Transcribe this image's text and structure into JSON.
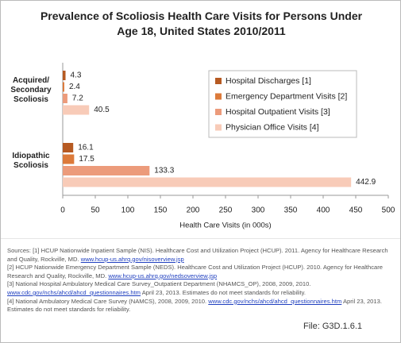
{
  "chart_data": {
    "type": "hbar",
    "title": "Prevalence of Scoliosis Health Care Visits for Persons Under Age 18, United States 2010/2011",
    "x_label": "Health Care Visits (in 000s)",
    "categories": [
      "Acquired/ Secondary Scoliosis",
      "Idiopathic Scoliosis"
    ],
    "series": [
      {
        "name": "Hospital Discharges [1]",
        "color": "#b65a22",
        "values": [
          4.3,
          16.1
        ]
      },
      {
        "name": "Emergency Department Visits [2]",
        "color": "#dc7a3a",
        "values": [
          2.4,
          17.5
        ]
      },
      {
        "name": "Hospital Outpatient Visits [3]",
        "color": "#ec9b7b",
        "values": [
          7.2,
          133.3
        ]
      },
      {
        "name": "Physician Office Visits [4]",
        "color": "#f8cbb8",
        "values": [
          40.5,
          442.9
        ]
      }
    ],
    "xlim": [
      0,
      500
    ],
    "xticks": [
      0,
      50,
      100,
      150,
      200,
      250,
      300,
      350,
      400,
      450,
      500
    ],
    "grid": false,
    "legend": "right"
  },
  "sources": [
    {
      "text": "Sources: [1] HCUP Nationwide Inpatient Sample (NIS). Healthcare Cost and Utilization Project (HCUP). 2011. Agency for Healthcare Research and Quality, Rockville, MD.",
      "link": "www.hcup-us.ahrq.gov/nisoverview.jsp"
    },
    {
      "text": "[2] HCUP Nationwide Emergency Department Sample (NEDS). Healthcare Cost and Utilization Project (HCUP). 2010. Agency for Healthcare Research and Quality, Rockville, MD.",
      "link": "www.hcup-us.ahrq.gov/nedsoverview.jsp"
    },
    {
      "text": "[3] National Hospital Ambulatory Medical Care Survey_Outpatient Department (NHAMCS_OP), 2008, 2009, 2010.",
      "link": "www.cdc.gov/nchs/ahcd/ahcd_questionnaires.htm",
      "after": "April 23, 2013. Estimates do not meet standards for reliability."
    },
    {
      "text": "[4] National Ambulatory Medical Care Survey (NAMCS), 2008, 2009, 2010.",
      "link": "www.cdc.gov/nchs/ahcd/ahcd_questionnaires.htm",
      "after": "April 23, 2013. Estimates do not meet standards for reliability."
    }
  ],
  "file": "File: G3D.1.6.1"
}
